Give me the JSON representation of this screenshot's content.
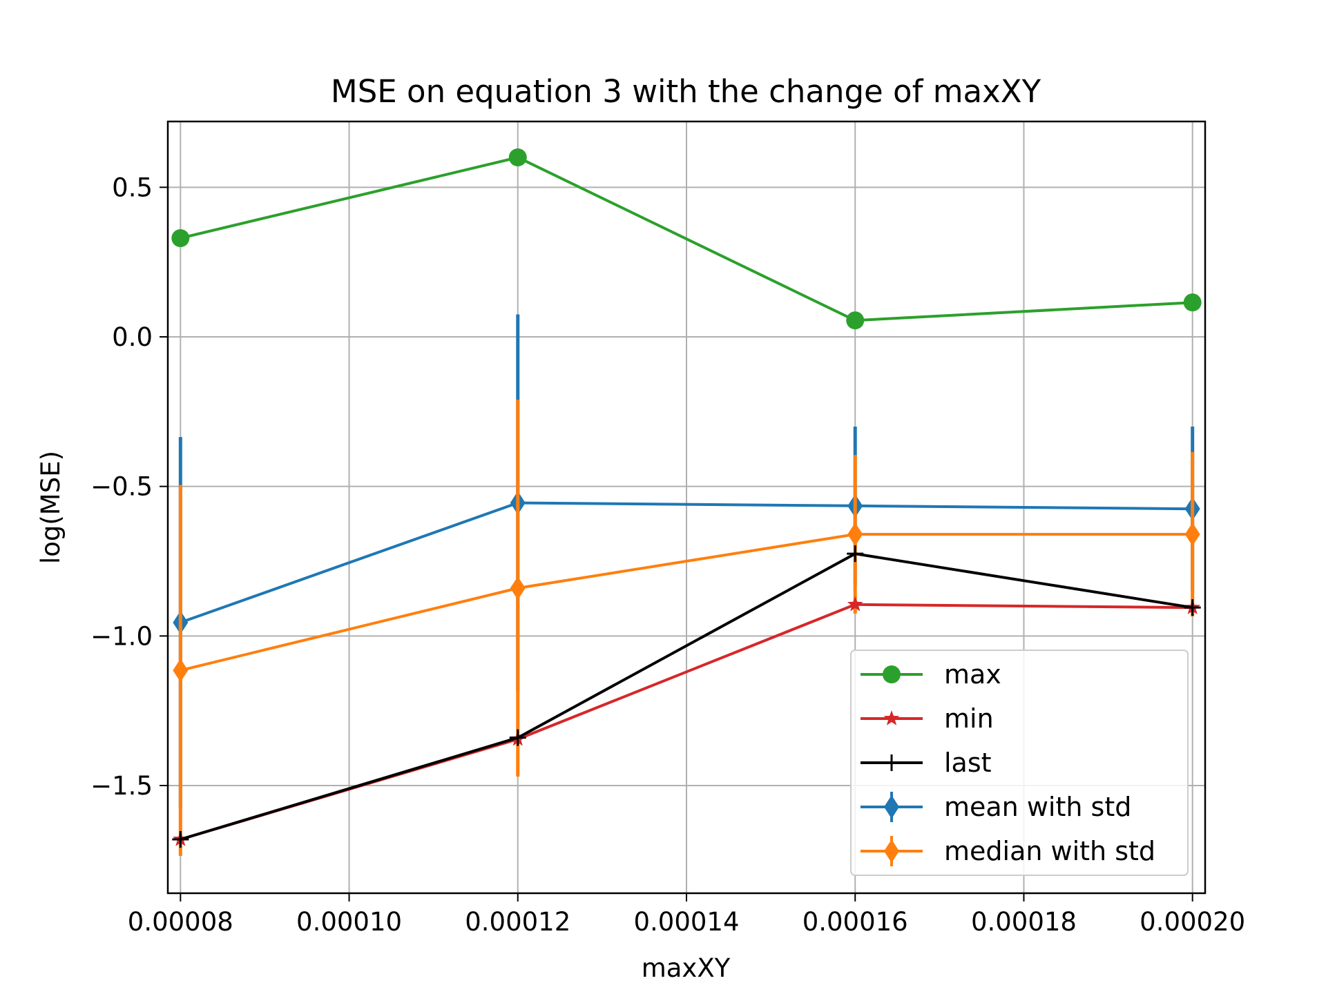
{
  "chart_data": {
    "type": "line",
    "title": "MSE on equation 3 with the change of maxXY",
    "xlabel": "maxXY",
    "ylabel": "log(MSE)",
    "xlim": [
      7.85e-05,
      0.0002015
    ],
    "ylim": [
      -1.86,
      0.72
    ],
    "x_ticks": [
      8e-05,
      0.0001,
      0.00012,
      0.00014,
      0.00016,
      0.00018,
      0.0002
    ],
    "x_tick_labels": [
      "0.00008",
      "0.00010",
      "0.00012",
      "0.00014",
      "0.00016",
      "0.00018",
      "0.00020"
    ],
    "y_ticks": [
      0.5,
      0.0,
      -0.5,
      -1.0,
      -1.5
    ],
    "y_tick_labels": [
      "0.5",
      "0.0",
      "−0.5",
      "−1.0",
      "−1.5"
    ],
    "grid": true,
    "legend_position": "lower-right",
    "x": [
      8e-05,
      0.00012,
      0.00016,
      0.0002
    ],
    "series": [
      {
        "name": "max",
        "color": "#2ca02c",
        "marker": "circle",
        "values": [
          0.33,
          0.6,
          0.055,
          0.115
        ]
      },
      {
        "name": "min",
        "color": "#d62728",
        "marker": "star",
        "values": [
          -1.68,
          -1.345,
          -0.895,
          -0.905
        ]
      },
      {
        "name": "last",
        "color": "#000000",
        "marker": "plus",
        "values": [
          -1.68,
          -1.34,
          -0.725,
          -0.905
        ]
      },
      {
        "name": "mean with std",
        "color": "#1f77b4",
        "marker": "diamond",
        "values": [
          -0.955,
          -0.555,
          -0.565,
          -0.575
        ],
        "std": [
          0.62,
          0.63,
          0.265,
          0.275
        ]
      },
      {
        "name": "median with std",
        "color": "#ff7f0e",
        "marker": "diamond",
        "values": [
          -1.115,
          -0.84,
          -0.66,
          -0.66
        ],
        "std": [
          0.62,
          0.63,
          0.265,
          0.275
        ]
      }
    ]
  }
}
